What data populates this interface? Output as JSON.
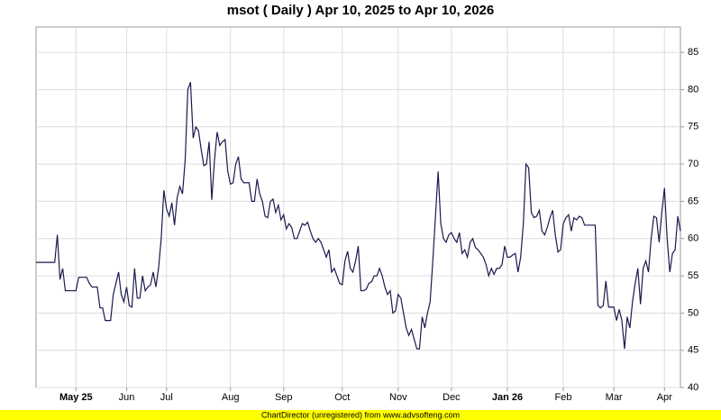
{
  "chart_data": {
    "type": "line",
    "title": "msot ( Daily ) Apr 10, 2025 to Apr 10, 2026",
    "color": "#1a1a4e",
    "values": [
      56.8,
      56.8,
      56.8,
      56.8,
      56.8,
      56.8,
      56.8,
      56.8,
      60.5,
      54.5,
      56,
      53,
      53,
      53,
      53,
      53,
      54.8,
      54.8,
      54.8,
      54.8,
      54,
      53.5,
      53.5,
      53.5,
      50.7,
      50.7,
      49,
      49,
      49,
      52.5,
      54,
      55.5,
      52.5,
      51.5,
      53.5,
      51,
      50.8,
      56,
      52,
      52,
      55,
      53,
      53.5,
      53.8,
      55.5,
      53.5,
      56,
      60,
      66.5,
      64,
      63,
      64.8,
      61.8,
      65.5,
      67,
      66,
      70.5,
      80,
      81,
      73.5,
      75,
      74.5,
      72,
      69.8,
      70,
      73,
      65.2,
      70.5,
      74.3,
      72.5,
      73,
      73.3,
      69,
      67.3,
      67.5,
      70,
      71,
      68,
      67.5,
      67.5,
      67.5,
      65,
      65,
      68,
      66,
      65,
      63,
      62.8,
      65,
      65.3,
      63.5,
      64.5,
      62.5,
      63.2,
      61.3,
      62,
      61.5,
      60,
      60,
      61,
      62,
      61.8,
      62.2,
      61,
      60,
      59.5,
      60,
      59.5,
      58.5,
      57.5,
      58.5,
      55.5,
      56,
      55,
      54,
      53.8,
      57,
      58.3,
      56,
      55.5,
      57,
      59,
      53,
      53,
      53.2,
      54,
      54.2,
      55,
      55,
      56,
      55,
      53.5,
      52.5,
      53,
      50,
      50.3,
      52.5,
      52,
      50,
      48,
      47,
      47.8,
      46.5,
      45.2,
      45.2,
      49.5,
      48,
      50,
      51.5,
      57,
      63,
      69,
      62,
      60,
      59.5,
      60.5,
      60.8,
      60,
      59.5,
      60.8,
      58,
      58.5,
      57.5,
      59.5,
      60,
      58.8,
      58.5,
      58,
      57.5,
      56.5,
      55,
      56,
      55.2,
      56,
      56,
      56.5,
      59,
      57.5,
      57.5,
      57.8,
      58,
      55.5,
      57.5,
      62,
      70,
      69.5,
      63.5,
      62.8,
      63,
      63.8,
      61,
      60.5,
      61.5,
      62.8,
      63.8,
      60.5,
      58.2,
      58.5,
      62,
      62.8,
      63.2,
      61,
      62.8,
      62.5,
      63,
      62.8,
      61.8,
      61.8,
      61.8,
      61.8,
      61.8,
      51,
      50.7,
      51,
      54.3,
      50.8,
      50.8,
      50.8,
      49,
      50.5,
      49,
      45.2,
      49.5,
      48,
      51.5,
      54,
      56,
      51.2,
      56,
      57,
      55.5,
      60,
      63,
      62.8,
      59.5,
      63.5,
      66.8,
      60,
      55.5,
      58,
      58.5,
      63,
      61
    ],
    "xlim": [
      0,
      242
    ],
    "xticks": [
      {
        "value": 15,
        "label": "May 25"
      },
      {
        "value": 34,
        "label": "Jun"
      },
      {
        "value": 49,
        "label": "Jul"
      },
      {
        "value": 73,
        "label": "Aug"
      },
      {
        "value": 93,
        "label": "Sep"
      },
      {
        "value": 115,
        "label": "Oct"
      },
      {
        "value": 136,
        "label": "Nov"
      },
      {
        "value": 156,
        "label": "Dec"
      },
      {
        "value": 177,
        "label": "Jan 26"
      },
      {
        "value": 198,
        "label": "Feb"
      },
      {
        "value": 217,
        "label": "Mar"
      },
      {
        "value": 236,
        "label": "Apr"
      }
    ],
    "ylim": [
      40,
      88.4
    ],
    "yticks": [
      40,
      45,
      50,
      55,
      60,
      65,
      70,
      75,
      80,
      85
    ],
    "grid": true
  },
  "footer": "ChartDirector (unregistered) from www.advsofteng.com"
}
